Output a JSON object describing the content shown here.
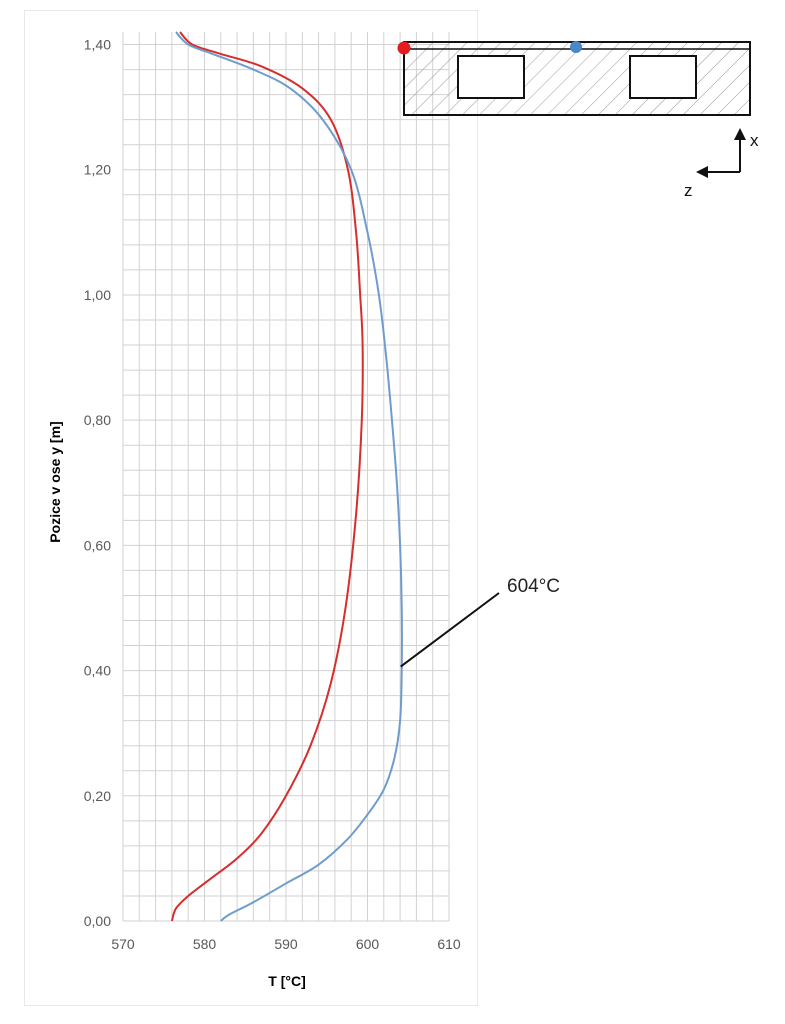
{
  "chart_data": {
    "type": "line",
    "xlabel": "T [°C]",
    "ylabel": "Pozice v ose y [m]",
    "xlim": [
      570,
      610
    ],
    "ylim": [
      0,
      1.42
    ],
    "x_ticks": [
      "570",
      "580",
      "590",
      "600",
      "610"
    ],
    "y_ticks": [
      "0,00",
      "0,20",
      "0,40",
      "0,60",
      "0,80",
      "1,00",
      "1,20",
      "1,40"
    ],
    "grid": true,
    "colors": {
      "red": "#d62d2d",
      "blue": "#6e9ccc"
    },
    "series": [
      {
        "color": "red",
        "points": [
          [
            576.0,
            0.0
          ],
          [
            576.5,
            0.02
          ],
          [
            578.0,
            0.04
          ],
          [
            581.0,
            0.07
          ],
          [
            584.0,
            0.1
          ],
          [
            587.0,
            0.14
          ],
          [
            590.0,
            0.2
          ],
          [
            593.0,
            0.28
          ],
          [
            595.5,
            0.38
          ],
          [
            597.3,
            0.5
          ],
          [
            598.6,
            0.65
          ],
          [
            599.3,
            0.8
          ],
          [
            599.4,
            0.92
          ],
          [
            599.1,
            1.0
          ],
          [
            598.6,
            1.1
          ],
          [
            597.6,
            1.2
          ],
          [
            595.5,
            1.28
          ],
          [
            592.0,
            1.33
          ],
          [
            587.0,
            1.365
          ],
          [
            582.0,
            1.385
          ],
          [
            578.5,
            1.4
          ],
          [
            577.0,
            1.42
          ]
        ]
      },
      {
        "color": "blue",
        "points": [
          [
            582.0,
            0.0
          ],
          [
            583.0,
            0.01
          ],
          [
            586.0,
            0.03
          ],
          [
            590.0,
            0.06
          ],
          [
            594.0,
            0.09
          ],
          [
            597.5,
            0.13
          ],
          [
            600.0,
            0.17
          ],
          [
            602.0,
            0.21
          ],
          [
            603.3,
            0.26
          ],
          [
            604.0,
            0.32
          ],
          [
            604.2,
            0.4
          ],
          [
            604.2,
            0.5
          ],
          [
            604.0,
            0.6
          ],
          [
            603.6,
            0.7
          ],
          [
            603.0,
            0.8
          ],
          [
            602.3,
            0.9
          ],
          [
            601.4,
            1.0
          ],
          [
            600.0,
            1.1
          ],
          [
            598.0,
            1.2
          ],
          [
            594.5,
            1.28
          ],
          [
            590.5,
            1.33
          ],
          [
            586.0,
            1.36
          ],
          [
            581.0,
            1.385
          ],
          [
            578.0,
            1.4
          ],
          [
            576.5,
            1.42
          ]
        ]
      }
    ],
    "annotation": {
      "text": "604°C",
      "x": 604.2,
      "y": 0.4
    }
  },
  "inset": {
    "axis_x_label": "x",
    "axis_z_label": "z",
    "markers": [
      {
        "color": "red",
        "hex": "#e51c1c"
      },
      {
        "color": "blue",
        "hex": "#4a86c8"
      }
    ]
  }
}
